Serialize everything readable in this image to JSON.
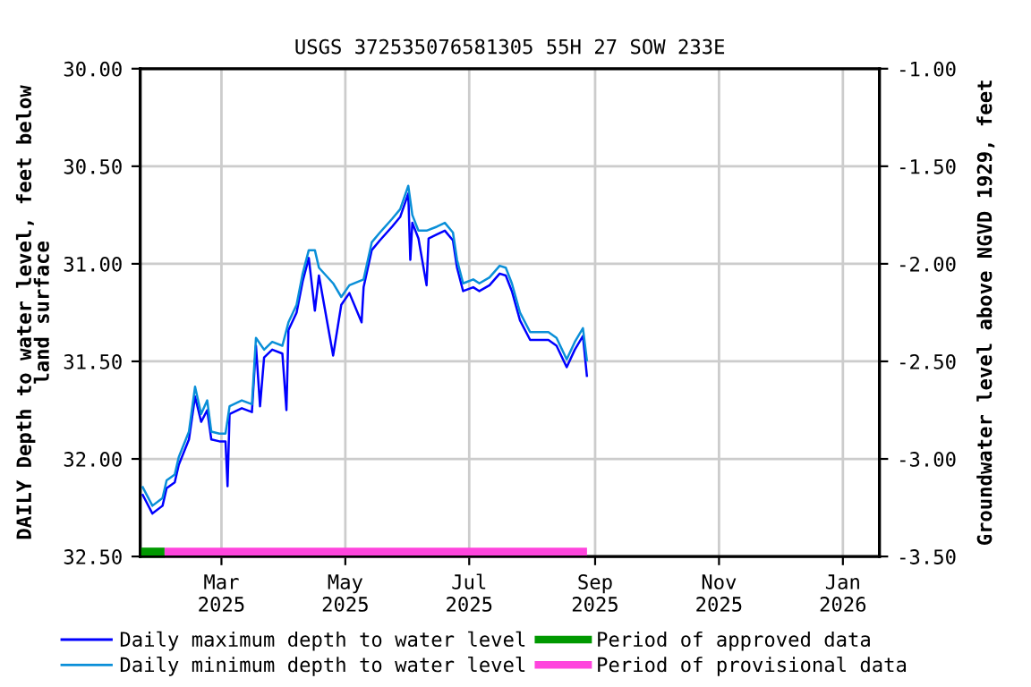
{
  "chart_data": {
    "type": "line",
    "title": "USGS 372535076581305 55H 27 SOW 233E",
    "ylabel": "DAILY Depth to water level, feet below\nland surface",
    "y2label": "Groundwater level above NGVD 1929, feet",
    "xlim": [
      "2025-01-20",
      "2026-01-19"
    ],
    "xticks": [
      {
        "value": "2025-03-01",
        "label": "Mar\n2025"
      },
      {
        "value": "2025-05-01",
        "label": "May\n2025"
      },
      {
        "value": "2025-07-01",
        "label": "Jul\n2025"
      },
      {
        "value": "2025-09-01",
        "label": "Sep\n2025"
      },
      {
        "value": "2025-11-01",
        "label": "Nov\n2025"
      },
      {
        "value": "2026-01-01",
        "label": "Jan\n2026"
      }
    ],
    "ylim": [
      32.5,
      30.0
    ],
    "yticks": [
      {
        "value": 30.0,
        "label": "30.00"
      },
      {
        "value": 30.5,
        "label": "30.50"
      },
      {
        "value": 31.0,
        "label": "31.00"
      },
      {
        "value": 31.5,
        "label": "31.50"
      },
      {
        "value": 32.0,
        "label": "32.00"
      },
      {
        "value": 32.5,
        "label": "32.50"
      }
    ],
    "y2lim": [
      -3.5,
      -1.0
    ],
    "y2ticks": [
      {
        "value": -1.0,
        "label": "-1.00"
      },
      {
        "value": -1.5,
        "label": "-1.50"
      },
      {
        "value": -2.0,
        "label": "-2.00"
      },
      {
        "value": -2.5,
        "label": "-2.50"
      },
      {
        "value": -3.0,
        "label": "-3.00"
      },
      {
        "value": -3.5,
        "label": "-3.50"
      }
    ],
    "grid": true,
    "legend": "bottom",
    "marker": "none",
    "line_style": "solid",
    "series": [
      {
        "name": "Daily maximum depth to water level",
        "color": "#0000ff",
        "x": [
          "2025-01-21",
          "2025-01-26",
          "2025-01-31",
          "2025-02-02",
          "2025-02-06",
          "2025-02-08",
          "2025-02-13",
          "2025-02-16",
          "2025-02-19",
          "2025-02-22",
          "2025-02-24",
          "2025-02-28",
          "2025-03-03",
          "2025-03-04",
          "2025-03-05",
          "2025-03-11",
          "2025-03-16",
          "2025-03-18",
          "2025-03-20",
          "2025-03-22",
          "2025-03-26",
          "2025-03-31",
          "2025-04-02",
          "2025-04-03",
          "2025-04-07",
          "2025-04-10",
          "2025-04-13",
          "2025-04-16",
          "2025-04-18",
          "2025-04-25",
          "2025-04-29",
          "2025-05-03",
          "2025-05-09",
          "2025-05-10",
          "2025-05-14",
          "2025-05-18",
          "2025-05-24",
          "2025-05-28",
          "2025-06-01",
          "2025-06-02",
          "2025-06-03",
          "2025-06-06",
          "2025-06-10",
          "2025-06-11",
          "2025-06-15",
          "2025-06-19",
          "2025-06-23",
          "2025-06-25",
          "2025-06-28",
          "2025-07-03",
          "2025-07-06",
          "2025-07-11",
          "2025-07-16",
          "2025-07-19",
          "2025-07-22",
          "2025-07-26",
          "2025-07-31",
          "2025-08-04",
          "2025-08-09",
          "2025-08-13",
          "2025-08-18",
          "2025-08-22",
          "2025-08-26",
          "2025-08-28"
        ],
        "values": [
          32.18,
          32.28,
          32.24,
          32.15,
          32.12,
          32.03,
          31.9,
          31.68,
          31.81,
          31.75,
          31.9,
          31.91,
          31.91,
          32.14,
          31.77,
          31.74,
          31.76,
          31.42,
          31.73,
          31.48,
          31.44,
          31.46,
          31.75,
          31.34,
          31.25,
          31.09,
          30.97,
          31.24,
          31.06,
          31.47,
          31.21,
          31.15,
          31.3,
          31.12,
          30.93,
          30.88,
          30.81,
          30.76,
          30.64,
          30.98,
          30.79,
          30.87,
          31.11,
          30.87,
          30.85,
          30.83,
          30.88,
          31.02,
          31.14,
          31.12,
          31.14,
          31.11,
          31.05,
          31.06,
          31.14,
          31.29,
          31.39,
          31.39,
          31.39,
          31.42,
          31.53,
          31.44,
          31.37,
          31.58
        ]
      },
      {
        "name": "Daily minimum depth to water level",
        "color": "#0a8fd8",
        "x": [
          "2025-01-21",
          "2025-01-26",
          "2025-01-31",
          "2025-02-02",
          "2025-02-06",
          "2025-02-08",
          "2025-02-13",
          "2025-02-16",
          "2025-02-19",
          "2025-02-22",
          "2025-02-24",
          "2025-02-28",
          "2025-03-03",
          "2025-03-05",
          "2025-03-11",
          "2025-03-16",
          "2025-03-18",
          "2025-03-22",
          "2025-03-26",
          "2025-03-31",
          "2025-04-03",
          "2025-04-07",
          "2025-04-10",
          "2025-04-13",
          "2025-04-16",
          "2025-04-18",
          "2025-04-25",
          "2025-04-29",
          "2025-05-03",
          "2025-05-10",
          "2025-05-14",
          "2025-05-18",
          "2025-05-24",
          "2025-05-28",
          "2025-06-01",
          "2025-06-03",
          "2025-06-06",
          "2025-06-10",
          "2025-06-15",
          "2025-06-19",
          "2025-06-23",
          "2025-06-25",
          "2025-06-28",
          "2025-07-03",
          "2025-07-06",
          "2025-07-11",
          "2025-07-16",
          "2025-07-19",
          "2025-07-22",
          "2025-07-26",
          "2025-07-31",
          "2025-08-04",
          "2025-08-09",
          "2025-08-13",
          "2025-08-18",
          "2025-08-22",
          "2025-08-26",
          "2025-08-28"
        ],
        "values": [
          32.14,
          32.24,
          32.2,
          32.11,
          32.08,
          31.99,
          31.86,
          31.63,
          31.77,
          31.7,
          31.86,
          31.87,
          31.87,
          31.73,
          31.7,
          31.72,
          31.38,
          31.44,
          31.4,
          31.42,
          31.3,
          31.21,
          31.05,
          30.93,
          30.93,
          31.02,
          31.1,
          31.17,
          31.11,
          31.08,
          30.89,
          30.84,
          30.77,
          30.72,
          30.6,
          30.75,
          30.83,
          30.83,
          30.81,
          30.79,
          30.84,
          30.98,
          31.1,
          31.08,
          31.1,
          31.07,
          31.01,
          31.02,
          31.1,
          31.25,
          31.35,
          31.35,
          31.35,
          31.38,
          31.49,
          31.4,
          31.33,
          31.5
        ]
      },
      {
        "name": "Period of approved data",
        "color": "#009900",
        "x": [
          "2025-01-20",
          "2025-02-01"
        ],
        "values": [
          32.48,
          32.48
        ]
      },
      {
        "name": "Period of provisional data",
        "color": "#ff44dd",
        "x": [
          "2025-02-01",
          "2025-08-28"
        ],
        "values": [
          32.48,
          32.48
        ]
      }
    ]
  }
}
